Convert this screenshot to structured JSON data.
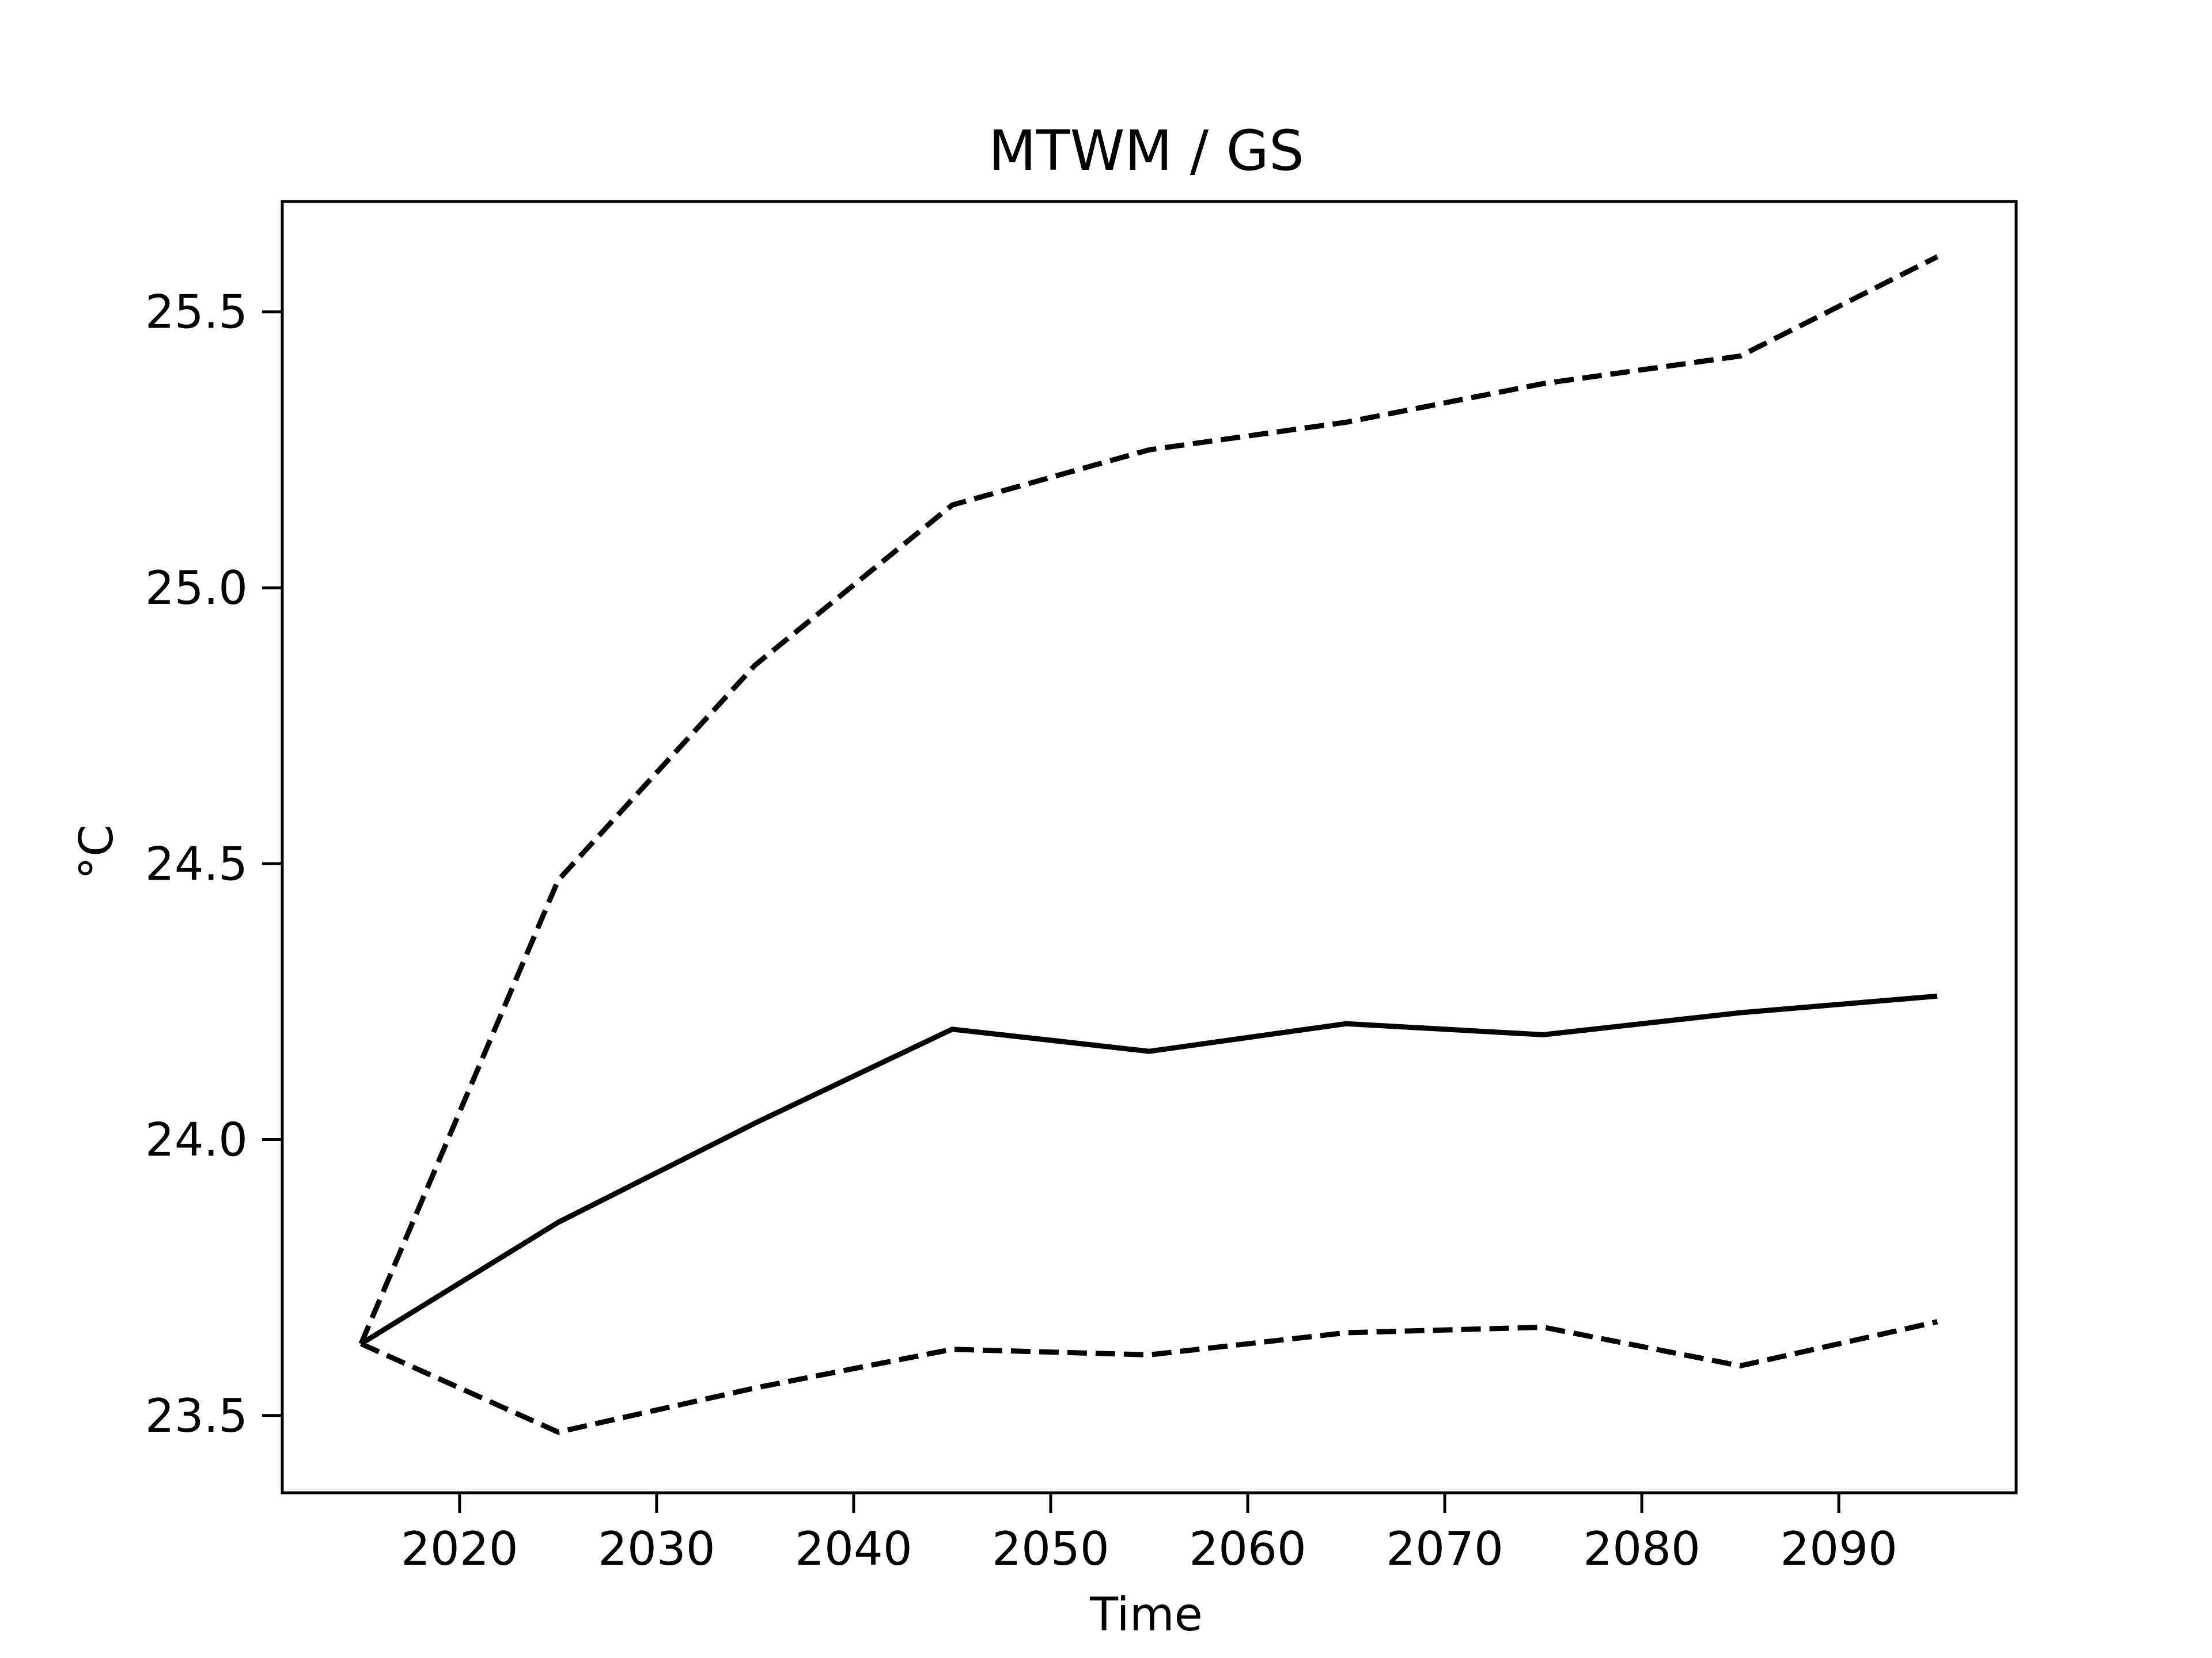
{
  "chart_data": {
    "type": "line",
    "title": "MTWM / GS",
    "xlabel": "Time",
    "ylabel": "°C",
    "xlim": [
      2011,
      2099
    ],
    "ylim": [
      23.36,
      25.7
    ],
    "x_ticks": [
      2020,
      2030,
      2040,
      2050,
      2060,
      2070,
      2080,
      2090
    ],
    "y_ticks": [
      23.5,
      24.0,
      24.5,
      25.0,
      25.5
    ],
    "y_tick_labels": [
      "23.5",
      "24.0",
      "24.5",
      "25.0",
      "25.5"
    ],
    "grid": false,
    "legend": "none",
    "x": [
      2015,
      2025,
      2035,
      2045,
      2055,
      2065,
      2075,
      2085,
      2095
    ],
    "series": [
      {
        "style": "dashed",
        "color": "#000000",
        "values": [
          23.63,
          24.47,
          24.86,
          25.15,
          25.25,
          25.3,
          25.37,
          25.42,
          25.6
        ]
      },
      {
        "style": "solid",
        "color": "#000000",
        "values": [
          23.63,
          23.85,
          24.03,
          24.2,
          24.16,
          24.21,
          24.19,
          24.23,
          24.26
        ]
      },
      {
        "style": "dashed",
        "color": "#000000",
        "values": [
          23.63,
          23.47,
          23.55,
          23.62,
          23.61,
          23.65,
          23.66,
          23.59,
          23.67
        ]
      }
    ]
  }
}
